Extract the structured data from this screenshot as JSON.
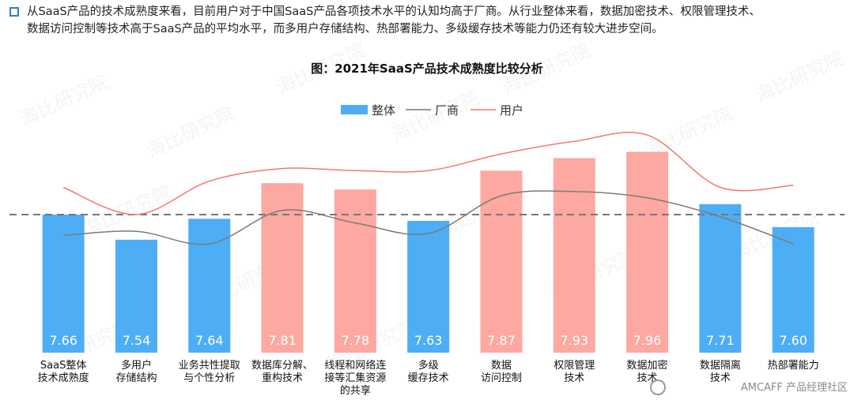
{
  "intro": {
    "line1": "从SaaS产品的技术成熟度来看，目前用户对于中国SaaS产品各项技术水平的认知均高于厂商。从行业整体来看，数据加密技术、权限管理技术、",
    "line2": "数据访问控制等技术高于SaaS产品的平均水平，而多用户存储结构、热部署能力、多级缓存技术等能力仍还有较大进步空间。"
  },
  "watermark_text": "海比研究院",
  "brand_text": "AMCAFF 产品经理社区",
  "chart_data": {
    "type": "bar",
    "title": "图：2021年SaaS产品技术成熟度比较分析",
    "legend_position": "top-center",
    "categories": [
      [
        "SaaS整体",
        "技术成熟度"
      ],
      [
        "多用户",
        "存储结构"
      ],
      [
        "业务共性提取",
        "与个性分析"
      ],
      [
        "数据库分解、",
        "重构技术"
      ],
      [
        "线程和网络连",
        "接等汇集资源",
        "的共享"
      ],
      [
        "多级",
        "缓存技术"
      ],
      [
        "数据",
        "访问控制"
      ],
      [
        "权限管理",
        "技术"
      ],
      [
        "数据加密",
        "技术"
      ],
      [
        "数据隔离",
        "技术"
      ],
      [
        "热部署能力"
      ]
    ],
    "series": [
      {
        "name": "整体",
        "kind": "bar",
        "values": [
          7.66,
          7.54,
          7.64,
          7.81,
          7.78,
          7.63,
          7.87,
          7.93,
          7.96,
          7.71,
          7.6
        ],
        "labels": [
          "7.66",
          "7.54",
          "7.64",
          "7.81",
          "7.78",
          "7.63",
          "7.87",
          "7.93",
          "7.96",
          "7.71",
          "7.60"
        ],
        "colors": [
          "#4daef6",
          "#4daef6",
          "#4daef6",
          "#fda8a0",
          "#fda8a0",
          "#4daef6",
          "#fda8a0",
          "#fda8a0",
          "#fda8a0",
          "#4daef6",
          "#4daef6"
        ],
        "legend_color": "#4daef6"
      },
      {
        "name": "厂商",
        "kind": "line",
        "color": "#7b7b7b",
        "values": [
          7.56,
          7.58,
          7.52,
          7.68,
          7.62,
          7.57,
          7.75,
          7.77,
          7.74,
          7.65,
          7.52
        ]
      },
      {
        "name": "用户",
        "kind": "line",
        "color": "#f4786b",
        "values": [
          7.79,
          7.66,
          7.82,
          7.88,
          7.87,
          7.87,
          7.95,
          8.01,
          8.04,
          7.79,
          7.8
        ]
      }
    ],
    "reference_line": {
      "value": 7.66,
      "style": "dashed",
      "color": "#777777"
    },
    "ylim": [
      7.0,
      8.12
    ],
    "xlabel": "",
    "ylabel": "",
    "grid": false
  }
}
